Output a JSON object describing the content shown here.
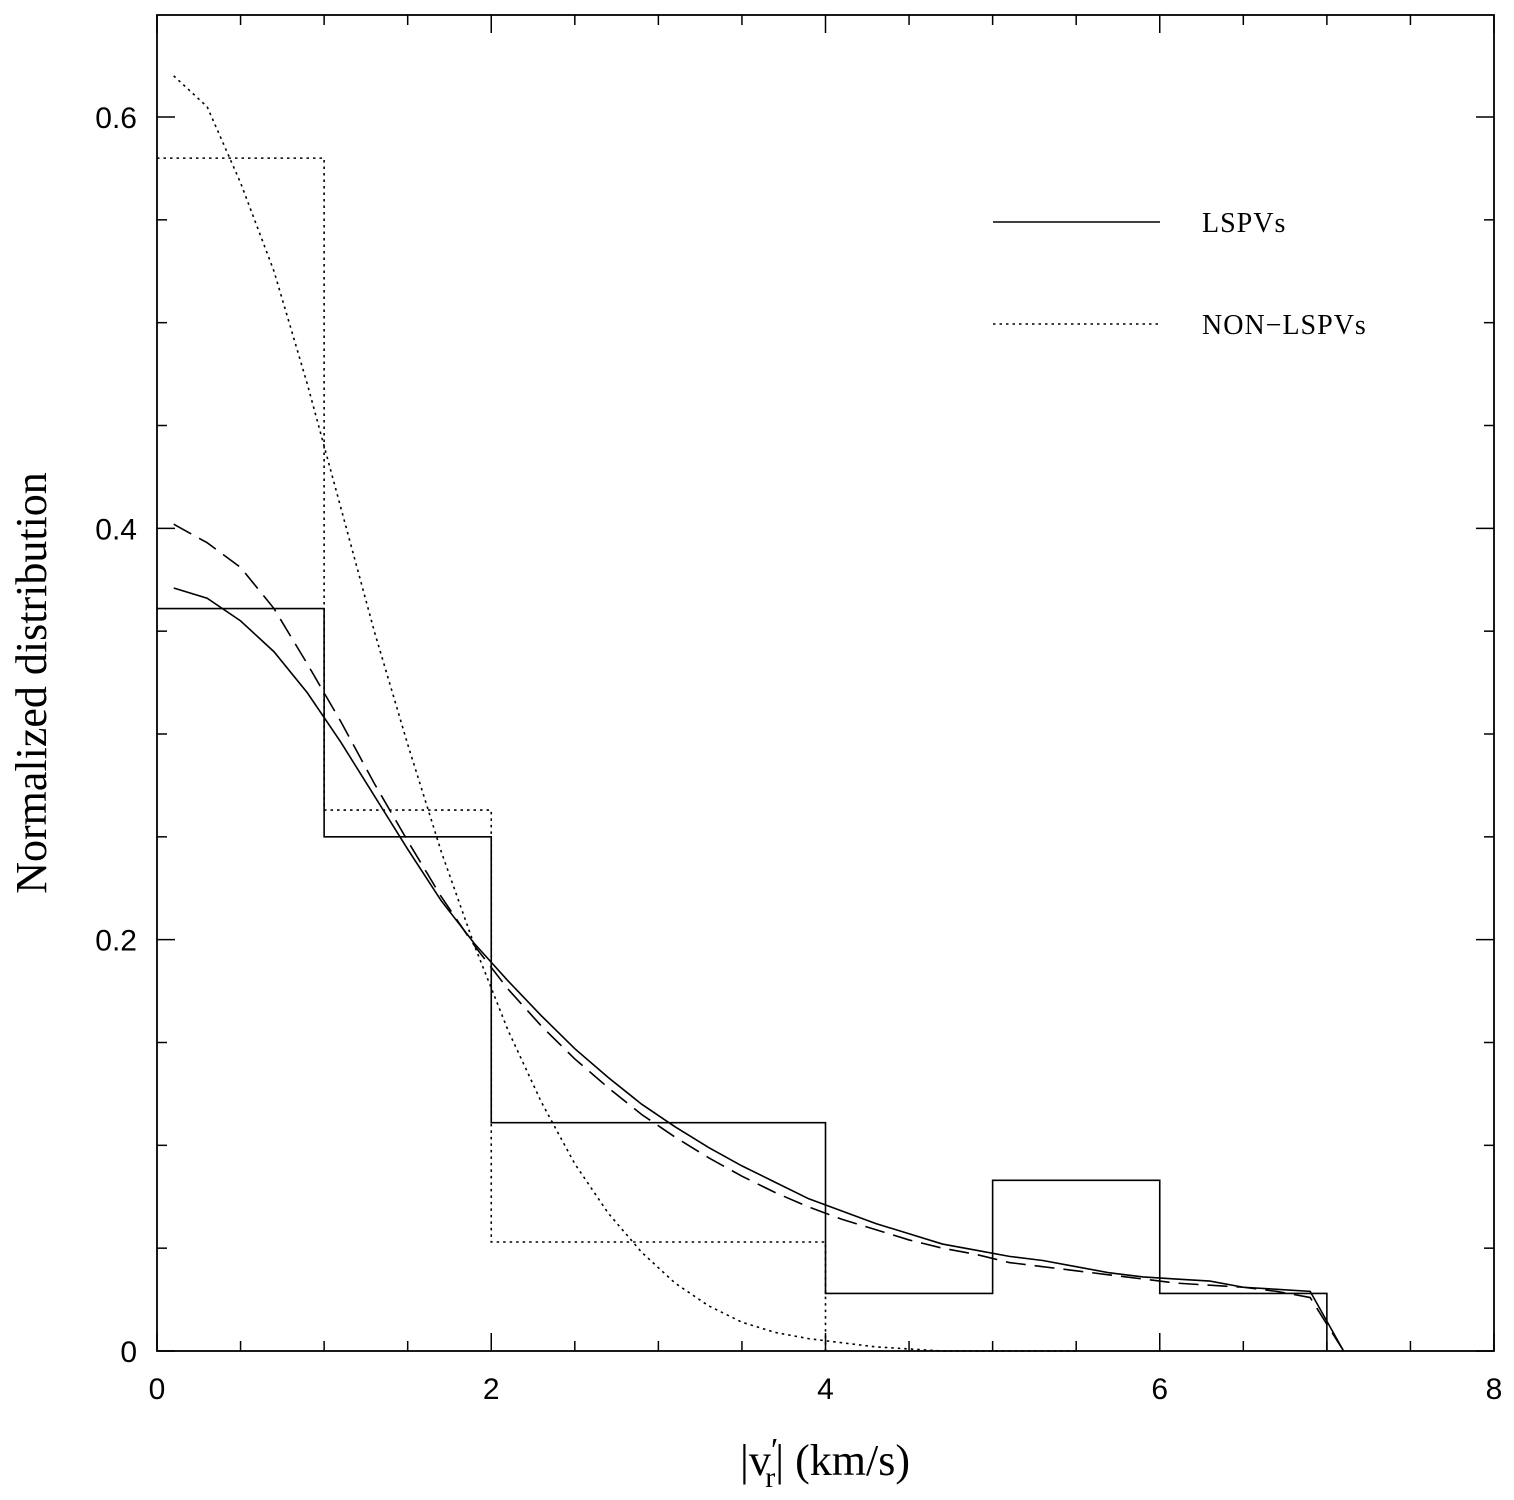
{
  "chart_data": {
    "type": "line",
    "xlabel": "|v′r|  (km/s)",
    "xlabel_parts": {
      "open": "|v",
      "prime": "′",
      "sub": "r",
      "rest": "|  (km/s)"
    },
    "ylabel": "Normalized distribution",
    "xlim": [
      0,
      8
    ],
    "ylim": [
      0,
      0.66
    ],
    "x_ticks": [
      0,
      2,
      4,
      6,
      8
    ],
    "y_ticks": [
      0,
      0.2,
      0.4,
      0.6
    ],
    "x_tick_labels": [
      "0",
      "2",
      "4",
      "6",
      "8"
    ],
    "y_tick_labels": [
      "0",
      "0.2",
      "0.4",
      "0.6"
    ],
    "x_minor_step": 0.5,
    "y_minor_step": 0.05,
    "grid": false,
    "legend": {
      "position": "top-right",
      "entries": [
        {
          "label": "LSPVs",
          "style": "solid"
        },
        {
          "label": "NON−LSPVs",
          "style": "dotted"
        }
      ]
    },
    "series": [
      {
        "kind": "histogram",
        "style": "solid",
        "edges": [
          0,
          1,
          2,
          4,
          5,
          6,
          7
        ],
        "values": [
          0.361,
          0.25,
          0.111,
          0.028,
          0.083,
          0.028
        ]
      },
      {
        "kind": "histogram",
        "style": "dotted",
        "edges": [
          0,
          1,
          2,
          4
        ],
        "values": [
          0.58,
          0.263,
          0.053
        ]
      },
      {
        "kind": "curve",
        "style": "solid",
        "x": [
          0.1,
          0.3,
          0.5,
          0.7,
          0.9,
          1.1,
          1.3,
          1.5,
          1.7,
          1.9,
          2.1,
          2.3,
          2.5,
          2.7,
          2.9,
          3.1,
          3.3,
          3.5,
          3.7,
          3.9,
          4.1,
          4.3,
          4.5,
          4.7,
          4.9,
          5.1,
          5.3,
          5.5,
          5.7,
          5.9,
          6.1,
          6.3,
          6.5,
          6.7,
          6.9,
          7.1
        ],
        "y": [
          0.371,
          0.366,
          0.355,
          0.34,
          0.32,
          0.296,
          0.27,
          0.244,
          0.219,
          0.198,
          0.18,
          0.163,
          0.147,
          0.133,
          0.12,
          0.109,
          0.099,
          0.09,
          0.082,
          0.074,
          0.068,
          0.062,
          0.057,
          0.052,
          0.049,
          0.046,
          0.044,
          0.041,
          0.038,
          0.036,
          0.035,
          0.034,
          0.031,
          0.03,
          0.029,
          0.0
        ]
      },
      {
        "kind": "curve",
        "style": "dashed",
        "x": [
          0.1,
          0.3,
          0.5,
          0.7,
          0.9,
          1.1,
          1.3,
          1.5,
          1.7,
          1.9,
          2.1,
          2.3,
          2.5,
          2.7,
          2.9,
          3.1,
          3.3,
          3.5,
          3.7,
          3.9,
          4.1,
          4.3,
          4.5,
          4.7,
          4.9,
          5.1,
          5.3,
          5.5,
          5.7,
          5.9,
          6.1,
          6.3,
          6.5,
          6.7,
          6.9,
          7.1
        ],
        "y": [
          0.402,
          0.393,
          0.381,
          0.361,
          0.334,
          0.306,
          0.276,
          0.248,
          0.221,
          0.197,
          0.176,
          0.158,
          0.142,
          0.128,
          0.115,
          0.104,
          0.094,
          0.085,
          0.077,
          0.07,
          0.064,
          0.059,
          0.054,
          0.05,
          0.047,
          0.043,
          0.041,
          0.039,
          0.037,
          0.035,
          0.033,
          0.032,
          0.031,
          0.029,
          0.026,
          0.0
        ]
      },
      {
        "kind": "curve",
        "style": "dotted",
        "x": [
          0.1,
          0.3,
          0.5,
          0.7,
          0.9,
          1.1,
          1.3,
          1.5,
          1.7,
          1.9,
          2.1,
          2.3,
          2.5,
          2.7,
          2.9,
          3.1,
          3.3,
          3.5,
          3.7,
          3.9,
          4.1,
          4.3,
          4.5,
          4.7,
          4.9,
          5.1,
          5.3,
          5.5
        ],
        "y": [
          0.62,
          0.605,
          0.568,
          0.525,
          0.47,
          0.41,
          0.35,
          0.295,
          0.243,
          0.197,
          0.156,
          0.121,
          0.091,
          0.067,
          0.048,
          0.033,
          0.022,
          0.014,
          0.009,
          0.006,
          0.004,
          0.002,
          0.001,
          0.0,
          0.0,
          0.0,
          0.0,
          0.0
        ]
      }
    ]
  }
}
